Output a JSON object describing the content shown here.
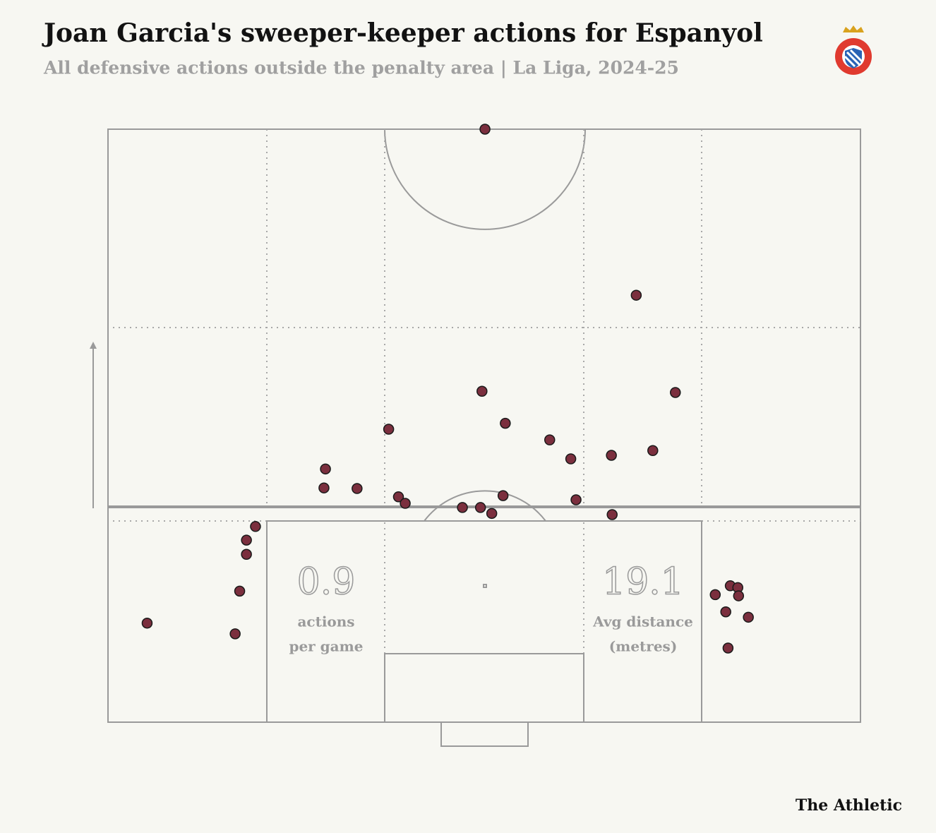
{
  "chart_data": {
    "type": "scatter",
    "title": "Joan Garcia's sweeper-keeper actions for Espanyol",
    "subtitle": "All defensive actions outside the penalty area | La Liga, 2024-25",
    "x": [
      50.1,
      70.2,
      49.7,
      75.4,
      52.8,
      37.3,
      58.7,
      61.5,
      66.9,
      72.4,
      28.9,
      28.7,
      33.1,
      38.6,
      39.5,
      52.5,
      47.1,
      49.5,
      51.0,
      62.2,
      67.0,
      19.6,
      18.4,
      18.4,
      17.5,
      5.2,
      16.9,
      82.7,
      83.7,
      80.7,
      83.8,
      82.1,
      85.1,
      82.4
    ],
    "y": [
      100,
      72.0,
      55.8,
      55.6,
      50.4,
      49.4,
      47.6,
      44.4,
      45.0,
      45.8,
      42.7,
      39.5,
      39.4,
      38.0,
      36.9,
      38.2,
      36.2,
      36.2,
      35.2,
      37.5,
      35.0,
      33.0,
      30.7,
      28.3,
      22.1,
      16.7,
      14.9,
      23.0,
      22.7,
      21.5,
      21.3,
      18.6,
      17.7,
      12.5
    ],
    "xlim": [
      0,
      100
    ],
    "ylim": [
      0,
      100
    ],
    "color": "#7b2f3e",
    "stats": [
      {
        "value": 0.9,
        "label": [
          "actions",
          "per game"
        ]
      },
      {
        "value": 19.1,
        "label": [
          "Avg distance",
          "(metres)"
        ]
      }
    ],
    "source": "The Athletic"
  }
}
